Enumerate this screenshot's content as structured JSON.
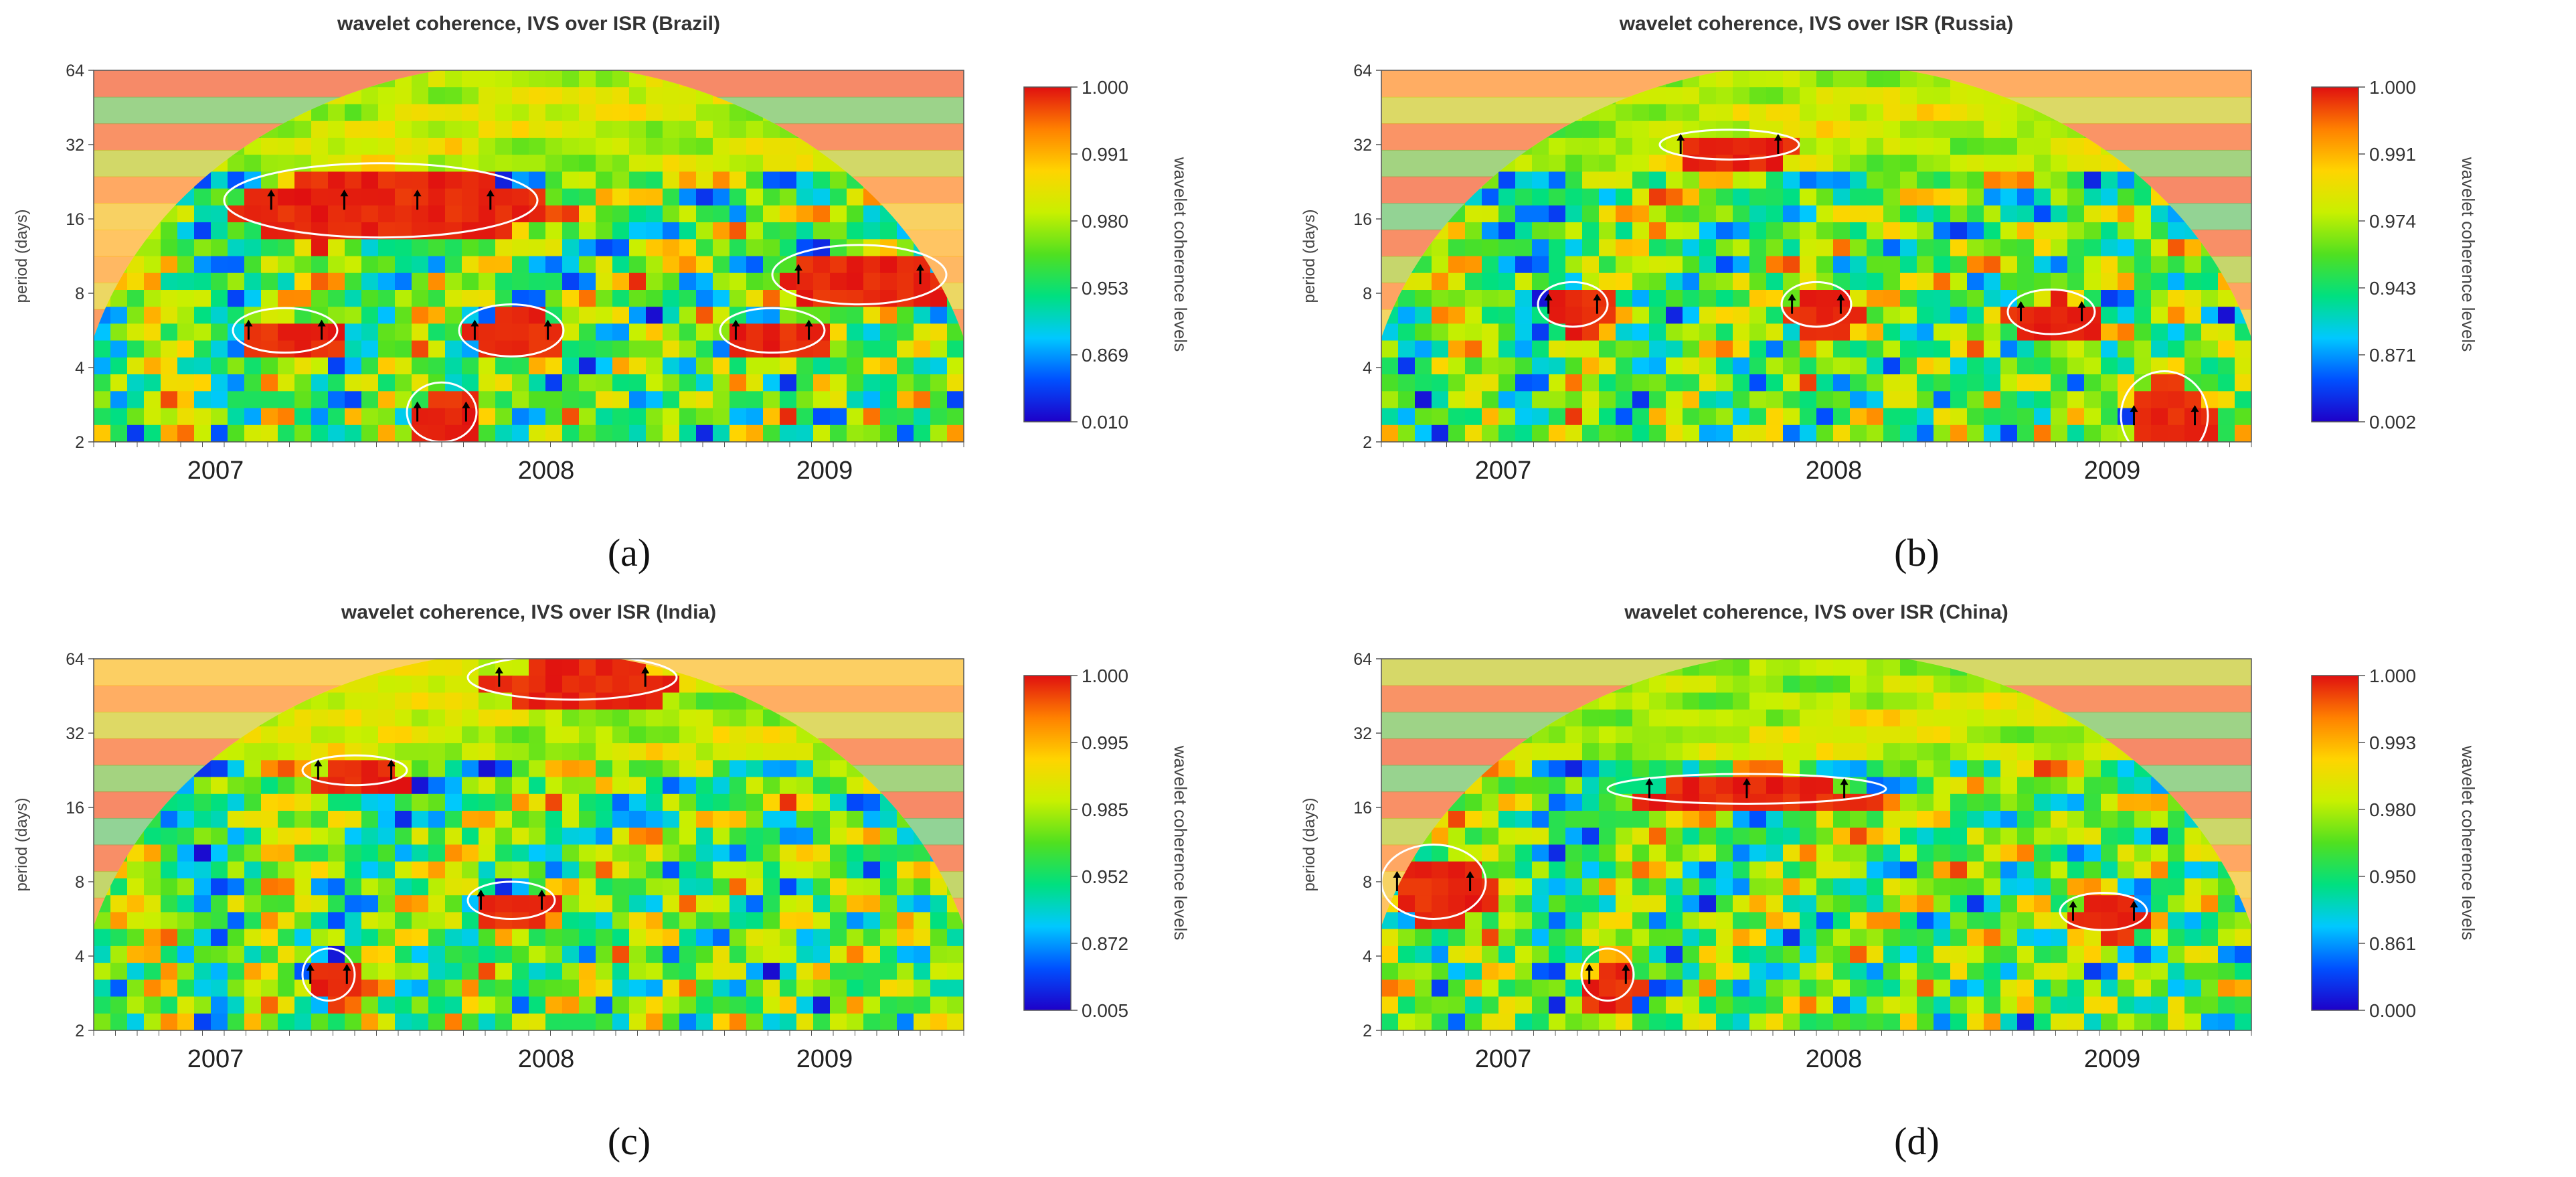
{
  "colors": {
    "cb_stops": [
      "#1e00c8",
      "#0050ff",
      "#00c8ff",
      "#00e080",
      "#50e020",
      "#c8f000",
      "#ffd400",
      "#ff8000",
      "#e01010"
    ],
    "cone": "#c8ff64",
    "background": "#ffffff"
  },
  "chart_data": [
    {
      "type": "heatmap",
      "id": "a",
      "title": "wavelet coherence, IVS over ISR (Brazil)",
      "caption": "(a)",
      "ylabel": "period (days)",
      "yticks": [
        "64",
        "32",
        "16",
        "8",
        "4",
        "2"
      ],
      "xticks": [
        "2007",
        "2008",
        "2009"
      ],
      "colorbar": {
        "label": "wavelet coherence levels",
        "ticks": [
          "1.000",
          "0.991",
          "0.980",
          "0.953",
          "0.869",
          "0.010"
        ]
      },
      "seed": 11,
      "hotspots": [
        [
          0.33,
          0.35,
          0.18,
          0.08
        ],
        [
          0.88,
          0.55,
          0.1,
          0.06
        ],
        [
          0.22,
          0.7,
          0.06,
          0.04
        ],
        [
          0.48,
          0.7,
          0.06,
          0.05
        ],
        [
          0.78,
          0.7,
          0.06,
          0.04
        ],
        [
          0.4,
          0.92,
          0.04,
          0.06
        ]
      ]
    },
    {
      "type": "heatmap",
      "id": "b",
      "title": "wavelet coherence, IVS over ISR (Russia)",
      "caption": "(b)",
      "ylabel": "period (days)",
      "yticks": [
        "64",
        "32",
        "16",
        "8",
        "4",
        "2"
      ],
      "xticks": [
        "2007",
        "2008",
        "2009"
      ],
      "colorbar": {
        "label": "wavelet coherence levels",
        "ticks": [
          "1.000",
          "0.991",
          "0.974",
          "0.943",
          "0.871",
          "0.002"
        ]
      },
      "seed": 23,
      "hotspots": [
        [
          0.4,
          0.2,
          0.08,
          0.02
        ],
        [
          0.22,
          0.63,
          0.04,
          0.04
        ],
        [
          0.5,
          0.63,
          0.04,
          0.04
        ],
        [
          0.77,
          0.65,
          0.05,
          0.04
        ],
        [
          0.9,
          0.93,
          0.05,
          0.1
        ]
      ]
    },
    {
      "type": "heatmap",
      "id": "c",
      "title": "wavelet coherence, IVS over ISR (India)",
      "caption": "(c)",
      "ylabel": "period (days)",
      "yticks": [
        "64",
        "32",
        "16",
        "8",
        "4",
        "2"
      ],
      "xticks": [
        "2007",
        "2008",
        "2009"
      ],
      "colorbar": {
        "label": "wavelet coherence levels",
        "ticks": [
          "1.000",
          "0.995",
          "0.985",
          "0.952",
          "0.872",
          "0.005"
        ]
      },
      "seed": 37,
      "hotspots": [
        [
          0.55,
          0.05,
          0.12,
          0.04
        ],
        [
          0.3,
          0.3,
          0.06,
          0.02
        ],
        [
          0.48,
          0.65,
          0.05,
          0.03
        ],
        [
          0.27,
          0.85,
          0.03,
          0.05
        ]
      ]
    },
    {
      "type": "heatmap",
      "id": "d",
      "title": "wavelet coherence, IVS over ISR (China)",
      "caption": "(d)",
      "ylabel": "period (days)",
      "yticks": [
        "64",
        "32",
        "16",
        "8",
        "4",
        "2"
      ],
      "xticks": [
        "2007",
        "2008",
        "2009"
      ],
      "colorbar": {
        "label": "wavelet coherence levels",
        "ticks": [
          "1.000",
          "0.993",
          "0.980",
          "0.950",
          "0.861",
          "0.000"
        ]
      },
      "seed": 53,
      "hotspots": [
        [
          0.06,
          0.6,
          0.06,
          0.08
        ],
        [
          0.42,
          0.35,
          0.16,
          0.02
        ],
        [
          0.83,
          0.68,
          0.05,
          0.03
        ],
        [
          0.26,
          0.85,
          0.03,
          0.05
        ]
      ]
    }
  ]
}
